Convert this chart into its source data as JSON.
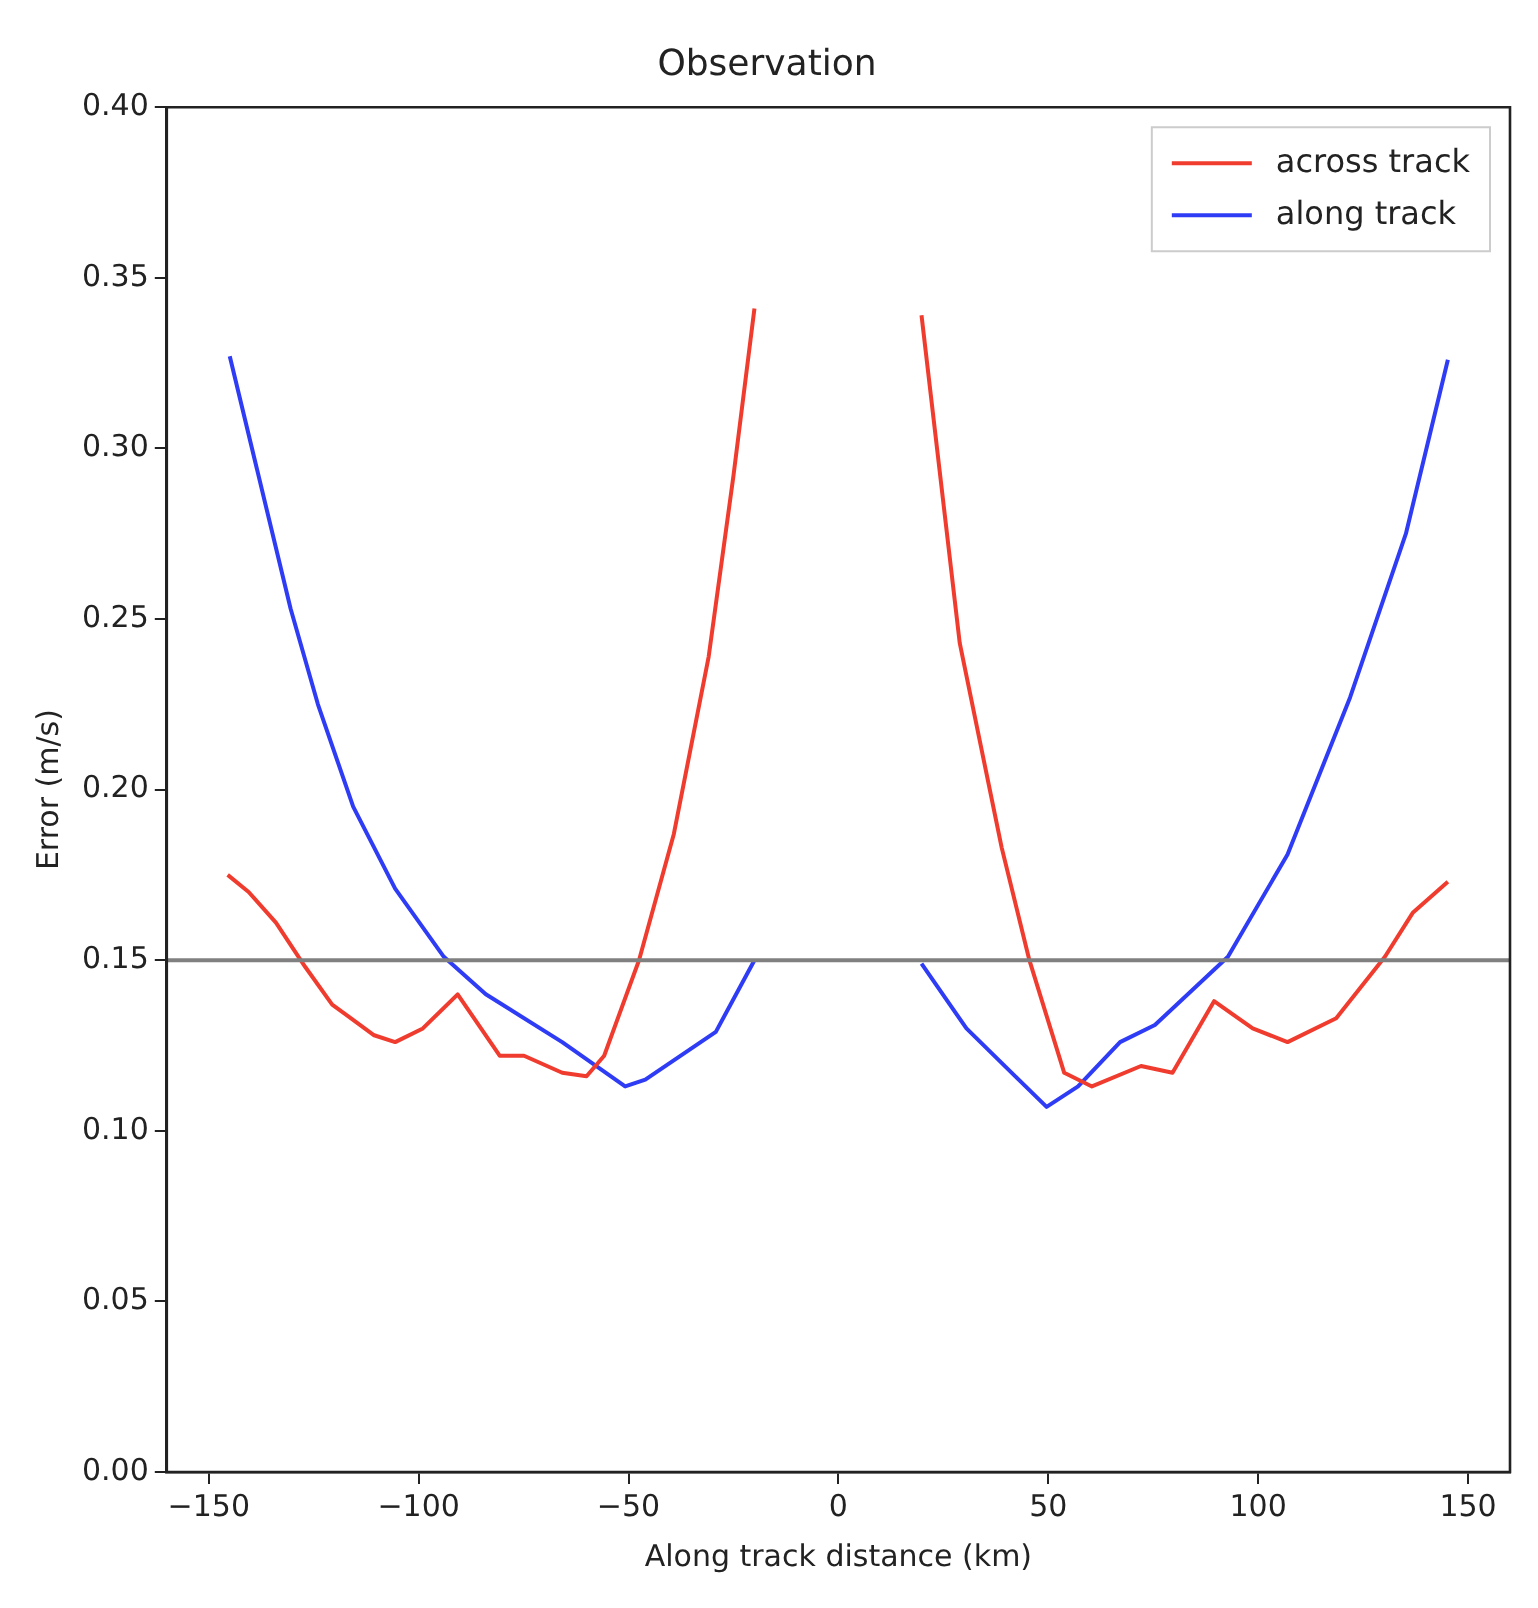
{
  "chart_data": {
    "type": "line",
    "title": "Observation",
    "xlabel": "Along track distance (km)",
    "ylabel": "Error (m/s)",
    "xlim": [
      -160,
      160
    ],
    "ylim": [
      0,
      0.4
    ],
    "xticks": [
      {
        "value": -150,
        "label": "−150"
      },
      {
        "value": -100,
        "label": "−100"
      },
      {
        "value": -50,
        "label": "−50"
      },
      0,
      50,
      100,
      150
    ],
    "yticks": [
      {
        "value": 0,
        "label": "0.00"
      },
      {
        "value": 0.05,
        "label": "0.05"
      },
      {
        "value": 0.1,
        "label": "0.10"
      },
      {
        "value": 0.15,
        "label": "0.15"
      },
      {
        "value": 0.2,
        "label": "0.20"
      },
      {
        "value": 0.25,
        "label": "0.25"
      },
      {
        "value": 0.3,
        "label": "0.30"
      },
      {
        "value": 0.35,
        "label": "0.35"
      },
      {
        "value": 0.4,
        "label": "0.40"
      }
    ],
    "grid": false,
    "legend": "top right",
    "marker": "none",
    "line_style": "solid",
    "ref_lines": [
      {
        "axis": "y",
        "value": 0.15,
        "color": "#808080"
      }
    ],
    "series": [
      {
        "name": "across track",
        "color": "#f03c2e",
        "x": [
          -145.5,
          -140.5,
          -134,
          -127,
          -120.6,
          -110.6,
          -105.6,
          -99,
          -90.7,
          -80.7,
          -74.9,
          -65.8,
          -60,
          -55.8,
          -47.5,
          -39.2,
          -30.9,
          -25,
          -20,
          0,
          19.8,
          28.9,
          38.9,
          45.5,
          53.8,
          60.4,
          72.1,
          79.6,
          89.5,
          98.7,
          107,
          118.6,
          130.2,
          136.9,
          145.2
        ],
        "values": [
          0.175,
          0.17,
          0.161,
          0.148,
          0.137,
          0.128,
          0.126,
          0.13,
          0.14,
          0.122,
          0.122,
          0.117,
          0.116,
          0.122,
          0.15,
          0.187,
          0.239,
          0.292,
          0.341,
          null,
          0.339,
          0.243,
          0.183,
          0.15,
          0.117,
          0.113,
          0.119,
          0.117,
          0.138,
          0.13,
          0.126,
          0.133,
          0.151,
          0.164,
          0.173
        ]
      },
      {
        "name": "along track",
        "color": "#2f3cf5",
        "x": [
          -145,
          -130.5,
          -124,
          -115.6,
          -105.6,
          -94,
          -84,
          -65.8,
          -50.8,
          -46,
          -29.2,
          -20,
          0,
          19.8,
          30.5,
          49.6,
          57.1,
          67.1,
          75.4,
          92.8,
          107,
          121.9,
          135.2,
          145.2
        ],
        "values": [
          0.327,
          0.253,
          0.225,
          0.195,
          0.171,
          0.151,
          0.14,
          0.126,
          0.113,
          0.115,
          0.129,
          0.15,
          null,
          0.149,
          0.13,
          0.107,
          0.113,
          0.126,
          0.131,
          0.151,
          0.181,
          0.227,
          0.275,
          0.326
        ]
      }
    ]
  }
}
